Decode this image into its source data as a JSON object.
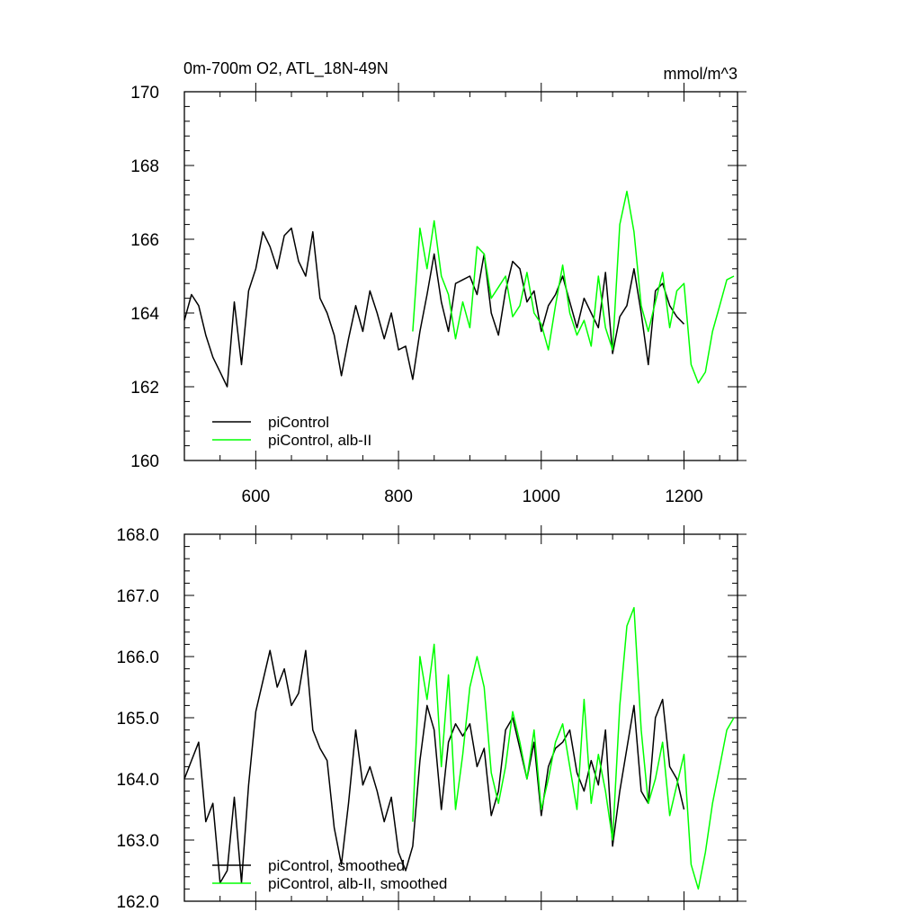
{
  "chart_data": [
    {
      "type": "line",
      "title": "0m-700m O2, ATL_18N-49N",
      "units": "mmol/m^3",
      "xlim": [
        500,
        1275
      ],
      "ylim": [
        160,
        170
      ],
      "xticks": [
        600,
        800,
        1000,
        1200
      ],
      "yticks": [
        160,
        162,
        164,
        166,
        168,
        170
      ],
      "ytick_decimals": 0,
      "legend": {
        "placement": "bottom-left"
      },
      "series": [
        {
          "name": "piControl",
          "color": "#000000",
          "x": [
            500,
            510,
            520,
            530,
            540,
            550,
            560,
            570,
            580,
            590,
            600,
            610,
            620,
            630,
            640,
            650,
            660,
            670,
            680,
            690,
            700,
            710,
            720,
            730,
            740,
            750,
            760,
            770,
            780,
            790,
            800,
            810,
            820,
            830,
            840,
            850,
            860,
            870,
            880,
            890,
            900,
            910,
            920,
            930,
            940,
            950,
            960,
            970,
            980,
            990,
            1000,
            1010,
            1020,
            1030,
            1040,
            1050,
            1060,
            1070,
            1080,
            1090,
            1100,
            1110,
            1120,
            1130,
            1140,
            1150,
            1160,
            1170,
            1180,
            1190,
            1200
          ],
          "y": [
            163.8,
            164.5,
            164.2,
            163.4,
            162.8,
            162.4,
            162.0,
            164.3,
            162.6,
            164.6,
            165.2,
            166.2,
            165.8,
            165.2,
            166.1,
            166.3,
            165.4,
            165.0,
            166.2,
            164.4,
            164.0,
            163.4,
            162.3,
            163.3,
            164.2,
            163.5,
            164.6,
            164.0,
            163.3,
            164.0,
            163.0,
            163.1,
            162.2,
            163.5,
            164.5,
            165.6,
            164.3,
            163.5,
            164.8,
            164.9,
            165.0,
            164.5,
            165.6,
            164.0,
            163.4,
            164.6,
            165.4,
            165.2,
            164.3,
            164.6,
            163.5,
            164.2,
            164.5,
            165.0,
            164.3,
            163.6,
            164.4,
            164.0,
            163.6,
            165.1,
            162.9,
            163.9,
            164.2,
            165.2,
            164.0,
            162.6,
            164.6,
            164.8,
            164.2,
            163.9,
            163.7
          ]
        },
        {
          "name": "piControl, alb-II",
          "color": "#00ff00",
          "x": [
            820,
            830,
            840,
            850,
            860,
            870,
            880,
            890,
            900,
            910,
            920,
            930,
            940,
            950,
            960,
            970,
            980,
            990,
            1000,
            1010,
            1020,
            1030,
            1040,
            1050,
            1060,
            1070,
            1080,
            1090,
            1100,
            1110,
            1120,
            1130,
            1140,
            1150,
            1160,
            1170,
            1180,
            1190,
            1200,
            1210,
            1220,
            1230,
            1240,
            1250,
            1260,
            1270
          ],
          "y": [
            163.5,
            166.3,
            165.2,
            166.5,
            165.0,
            164.5,
            163.3,
            164.3,
            163.6,
            165.8,
            165.6,
            164.4,
            164.7,
            165.0,
            163.9,
            164.2,
            165.1,
            164.0,
            163.7,
            163.0,
            164.2,
            165.3,
            164.0,
            163.4,
            163.8,
            163.1,
            165.0,
            163.6,
            163.0,
            166.4,
            167.3,
            166.2,
            164.2,
            163.5,
            164.3,
            165.1,
            163.6,
            164.6,
            164.8,
            162.6,
            162.1,
            162.4,
            163.5,
            164.2,
            164.9,
            165.0
          ]
        }
      ]
    },
    {
      "type": "line",
      "xlim": [
        500,
        1275
      ],
      "ylim": [
        162.0,
        168.0
      ],
      "xticks": [
        600,
        800,
        1000,
        1200
      ],
      "yticks": [
        162.0,
        163.0,
        164.0,
        165.0,
        166.0,
        167.0,
        168.0
      ],
      "ytick_decimals": 1,
      "legend": {
        "placement": "bottom-left"
      },
      "series": [
        {
          "name": "piControl, smoothed",
          "color": "#000000",
          "x": [
            500,
            510,
            520,
            530,
            540,
            550,
            560,
            570,
            580,
            590,
            600,
            610,
            620,
            630,
            640,
            650,
            660,
            670,
            680,
            690,
            700,
            710,
            720,
            730,
            740,
            750,
            760,
            770,
            780,
            790,
            800,
            810,
            820,
            830,
            840,
            850,
            860,
            870,
            880,
            890,
            900,
            910,
            920,
            930,
            940,
            950,
            960,
            970,
            980,
            990,
            1000,
            1010,
            1020,
            1030,
            1040,
            1050,
            1060,
            1070,
            1080,
            1090,
            1100,
            1110,
            1120,
            1130,
            1140,
            1150,
            1160,
            1170,
            1180,
            1190,
            1200
          ],
          "y": [
            164.0,
            164.3,
            164.6,
            163.3,
            163.6,
            162.3,
            162.5,
            163.7,
            162.3,
            163.9,
            165.1,
            165.6,
            166.1,
            165.5,
            165.8,
            165.2,
            165.4,
            166.1,
            164.8,
            164.5,
            164.3,
            163.2,
            162.6,
            163.6,
            164.8,
            163.9,
            164.2,
            163.8,
            163.3,
            163.7,
            162.8,
            162.5,
            162.9,
            164.3,
            165.2,
            164.8,
            163.5,
            164.6,
            164.9,
            164.7,
            164.9,
            164.2,
            164.5,
            163.4,
            163.8,
            164.8,
            165.0,
            164.5,
            164.0,
            164.6,
            163.4,
            164.2,
            164.5,
            164.6,
            164.8,
            164.1,
            163.8,
            164.3,
            163.9,
            164.8,
            162.9,
            163.8,
            164.5,
            165.2,
            163.8,
            163.6,
            165.0,
            165.3,
            164.2,
            164.0,
            163.5
          ]
        },
        {
          "name": "piControl, alb-II, smoothed",
          "color": "#00ff00",
          "x": [
            820,
            830,
            840,
            850,
            860,
            870,
            880,
            890,
            900,
            910,
            920,
            930,
            940,
            950,
            960,
            970,
            980,
            990,
            1000,
            1010,
            1020,
            1030,
            1040,
            1050,
            1060,
            1070,
            1080,
            1090,
            1100,
            1110,
            1120,
            1130,
            1140,
            1150,
            1160,
            1170,
            1180,
            1190,
            1200,
            1210,
            1220,
            1230,
            1240,
            1250,
            1260,
            1270
          ],
          "y": [
            163.3,
            166.0,
            165.3,
            166.2,
            164.2,
            165.7,
            163.5,
            164.4,
            165.5,
            166.0,
            165.5,
            164.1,
            163.6,
            164.2,
            165.1,
            164.6,
            164.0,
            164.8,
            163.5,
            164.0,
            164.6,
            164.9,
            164.2,
            163.5,
            165.3,
            163.6,
            164.4,
            163.8,
            163.0,
            165.2,
            166.5,
            166.8,
            164.8,
            163.6,
            164.0,
            164.6,
            163.4,
            163.9,
            164.4,
            162.6,
            162.2,
            162.8,
            163.6,
            164.2,
            164.8,
            165.0
          ]
        }
      ]
    }
  ]
}
